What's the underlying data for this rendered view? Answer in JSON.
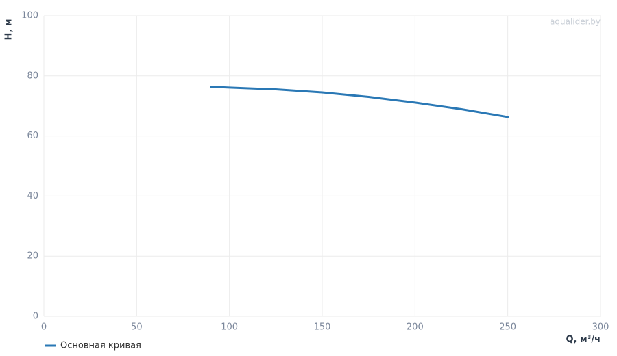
{
  "chart_data": {
    "type": "line",
    "watermark": "aqualider.by",
    "x_label": "Q, м³/ч",
    "y_label": "H, м",
    "x": [
      90,
      100,
      125,
      150,
      175,
      200,
      225,
      250
    ],
    "series": [
      {
        "name": "Основная кривая",
        "color": "#2a78b5",
        "values": [
          76.4,
          76.1,
          75.5,
          74.5,
          73.0,
          71.1,
          68.9,
          66.3
        ]
      }
    ],
    "xlim": [
      0,
      300
    ],
    "xticks": [
      0,
      50,
      100,
      150,
      200,
      250,
      300
    ],
    "ylim": [
      0,
      100
    ],
    "yticks": [
      0,
      20,
      40,
      60,
      80,
      100
    ],
    "grid": true,
    "legend": "bottom-left"
  }
}
